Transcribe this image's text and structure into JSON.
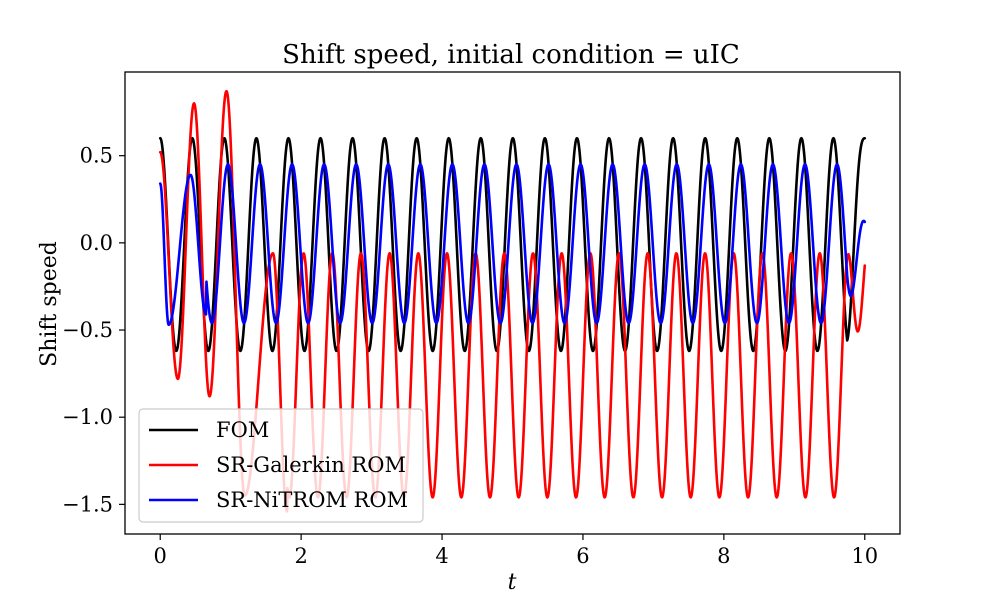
{
  "chart_data": {
    "type": "line",
    "title": "Shift speed, initial condition = uIC",
    "xlabel": "t",
    "ylabel": "Shift speed",
    "xlim": [
      -0.5,
      10.5
    ],
    "ylim": [
      -1.67,
      0.98
    ],
    "xticks": [
      0,
      2,
      4,
      6,
      8,
      10
    ],
    "xtick_labels": [
      "0",
      "2",
      "4",
      "6",
      "8",
      "10"
    ],
    "yticks": [
      0.5,
      0.0,
      -0.5,
      -1.0,
      -1.5
    ],
    "ytick_labels": [
      "0.5",
      "0.0",
      "−0.5",
      "−1.0",
      "−1.5"
    ],
    "grid": false,
    "legend_position": "lower-left",
    "x_range": [
      0,
      10
    ],
    "series": [
      {
        "name": "FOM",
        "color": "#000000",
        "period": 0.455,
        "max": 0.6,
        "min": -0.62,
        "start": 0.6,
        "end": 0.6
      },
      {
        "name": "SR-Galerkin ROM",
        "color": "#ff0000",
        "period": 0.407,
        "max": -0.06,
        "min": -1.46,
        "start": 0.52,
        "end": -0.13,
        "transient_extrema": [
          {
            "t": 0.25,
            "value": -0.78
          },
          {
            "t": 0.48,
            "value": 0.8
          },
          {
            "t": 0.7,
            "value": -0.88
          },
          {
            "t": 0.94,
            "value": 0.87
          },
          {
            "t": 1.2,
            "value": -1.45
          },
          {
            "t": 1.6,
            "value": -0.06
          },
          {
            "t": 1.8,
            "value": -1.54
          }
        ]
      },
      {
        "name": "SR-NiTROM ROM",
        "color": "#0000ff",
        "period": 0.455,
        "max": 0.45,
        "min": -0.46,
        "start": 0.34,
        "end": 0.12,
        "transient_extrema": [
          {
            "t": 0.12,
            "value": -0.47
          },
          {
            "t": 0.43,
            "value": 0.39
          },
          {
            "t": 0.65,
            "value": -0.41
          }
        ]
      }
    ]
  }
}
